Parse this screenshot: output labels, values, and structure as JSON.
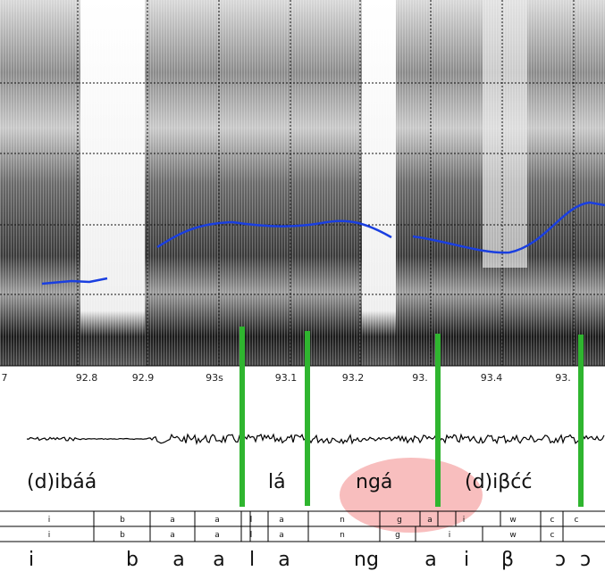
{
  "time_axis": {
    "labels": [
      "7",
      "92.8",
      "92.9",
      "93s",
      "93.1",
      "93.2",
      "93.",
      "93.4",
      "93."
    ]
  },
  "annotations": [
    "(d)ibáá",
    "lá",
    "ngá",
    "(d)iβćć"
  ],
  "tiers": [
    {
      "segments": [
        "i",
        "b",
        "a",
        "a",
        "l",
        "a",
        "n",
        "g",
        "a",
        "i",
        "w",
        "c",
        "c"
      ]
    },
    {
      "segments": [
        "i",
        "b",
        "a",
        "a",
        "l",
        "a",
        "n",
        "g",
        "i",
        "w",
        "c"
      ]
    }
  ],
  "transcription": [
    "i",
    "b",
    "a",
    "a",
    "l",
    "a",
    "ng",
    "a",
    "i",
    "β",
    "ɔ",
    "ɔ"
  ]
}
